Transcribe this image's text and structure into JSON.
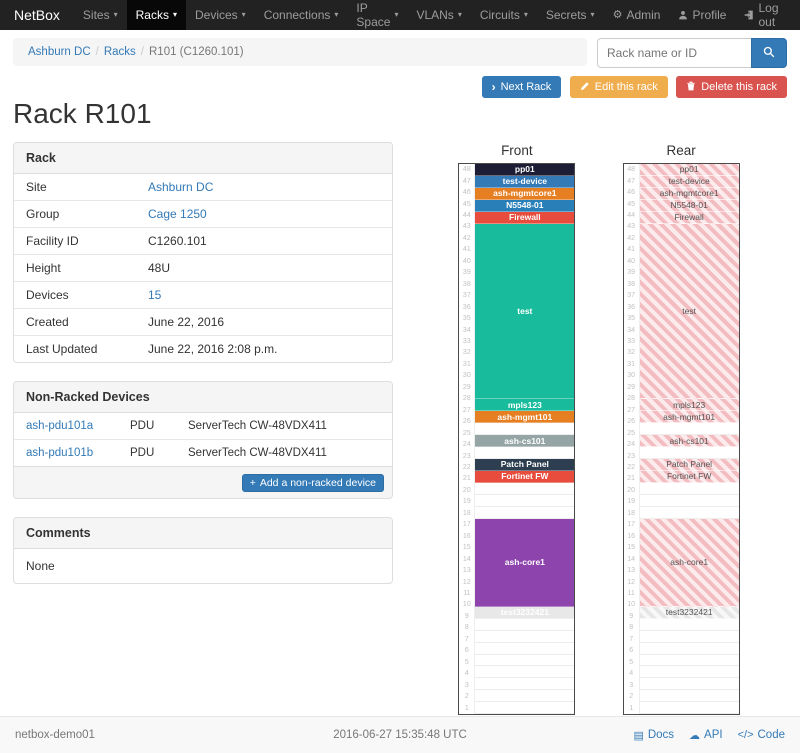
{
  "navbar": {
    "brand": "NetBox",
    "items": [
      {
        "label": "Sites",
        "active": false
      },
      {
        "label": "Racks",
        "active": true
      },
      {
        "label": "Devices",
        "active": false
      },
      {
        "label": "Connections",
        "active": false
      },
      {
        "label": "IP Space",
        "active": false
      },
      {
        "label": "VLANs",
        "active": false
      },
      {
        "label": "Circuits",
        "active": false
      },
      {
        "label": "Secrets",
        "active": false
      }
    ],
    "admin": "Admin",
    "profile": "Profile",
    "logout": "Log out"
  },
  "breadcrumb": {
    "items": [
      {
        "label": "Ashburn DC",
        "link": true
      },
      {
        "label": "Racks",
        "link": true
      },
      {
        "label": "R101 (C1260.101)",
        "link": false
      }
    ]
  },
  "search": {
    "placeholder": "Rack name or ID"
  },
  "actions": {
    "next_rack": "Next Rack",
    "edit_rack": "Edit this rack",
    "delete_rack": "Delete this rack"
  },
  "page": {
    "title": "Rack R101"
  },
  "rack_panel": {
    "title": "Rack",
    "rows": [
      {
        "label": "Site",
        "value": "Ashburn DC",
        "link": true
      },
      {
        "label": "Group",
        "value": "Cage 1250",
        "link": true
      },
      {
        "label": "Facility ID",
        "value": "C1260.101",
        "link": false
      },
      {
        "label": "Height",
        "value": "48U",
        "link": false
      },
      {
        "label": "Devices",
        "value": "15",
        "link": true
      },
      {
        "label": "Created",
        "value": "June 22, 2016",
        "link": false
      },
      {
        "label": "Last Updated",
        "value": "June 22, 2016 2:08 p.m.",
        "link": false
      }
    ]
  },
  "non_racked": {
    "title": "Non-Racked Devices",
    "devices": [
      {
        "name": "ash-pdu101a",
        "role": "PDU",
        "type": "ServerTech CW-48VDX411"
      },
      {
        "name": "ash-pdu101b",
        "role": "PDU",
        "type": "ServerTech CW-48VDX411"
      }
    ],
    "add_label": "Add a non-racked device"
  },
  "comments": {
    "title": "Comments",
    "body": "None"
  },
  "elevation": {
    "front_title": "Front",
    "rear_title": "Rear",
    "total_units": 48,
    "accent_colors": {
      "link_blue": "#337ab7",
      "stripe_pink": "#f3bcc1"
    },
    "slots": [
      {
        "units": 1,
        "label": "pp01",
        "color": "#1d1d35"
      },
      {
        "units": 1,
        "label": "test-device",
        "color": "#337ab7"
      },
      {
        "units": 1,
        "label": "ash-mgmtcore1",
        "color": "#e67e22"
      },
      {
        "units": 1,
        "label": "N5548-01",
        "color": "#2980b9"
      },
      {
        "units": 1,
        "label": "Firewall",
        "color": "#e74c3c"
      },
      {
        "units": 16,
        "label": "test",
        "color": "#18bc9c"
      },
      {
        "units": 1,
        "label": "mpls123",
        "color": "#18bc9c"
      },
      {
        "units": 1,
        "label": "ash-mgmt101",
        "color": "#e67e22"
      },
      {
        "units": 1,
        "label": ""
      },
      {
        "units": 1,
        "label": "ash-cs101",
        "color": "#95a5a6"
      },
      {
        "units": 1,
        "label": ""
      },
      {
        "units": 1,
        "label": "Patch Panel",
        "color": "#2c3e50"
      },
      {
        "units": 1,
        "label": "Fortinet FW",
        "color": "#e74c3c"
      },
      {
        "units": 1,
        "label": ""
      },
      {
        "units": 1,
        "label": ""
      },
      {
        "units": 1,
        "label": ""
      },
      {
        "units": 8,
        "label": "ash-core1",
        "color": "#8e44ad"
      },
      {
        "units": 1,
        "label": "test3232421",
        "color": "#e8e8e8",
        "text_color": "#ffffff",
        "muted": true
      },
      {
        "units": 1,
        "label": ""
      },
      {
        "units": 1,
        "label": ""
      },
      {
        "units": 1,
        "label": ""
      },
      {
        "units": 1,
        "label": ""
      },
      {
        "units": 1,
        "label": ""
      },
      {
        "units": 1,
        "label": ""
      },
      {
        "units": 1,
        "label": ""
      },
      {
        "units": 1,
        "label": ""
      }
    ]
  },
  "footer": {
    "hostname": "netbox-demo01",
    "timestamp": "2016-06-27 15:35:48 UTC",
    "links": [
      {
        "label": "Docs",
        "icon": "book-icon"
      },
      {
        "label": "API",
        "icon": "cloud-icon"
      },
      {
        "label": "Code",
        "icon": "code-icon"
      }
    ]
  }
}
